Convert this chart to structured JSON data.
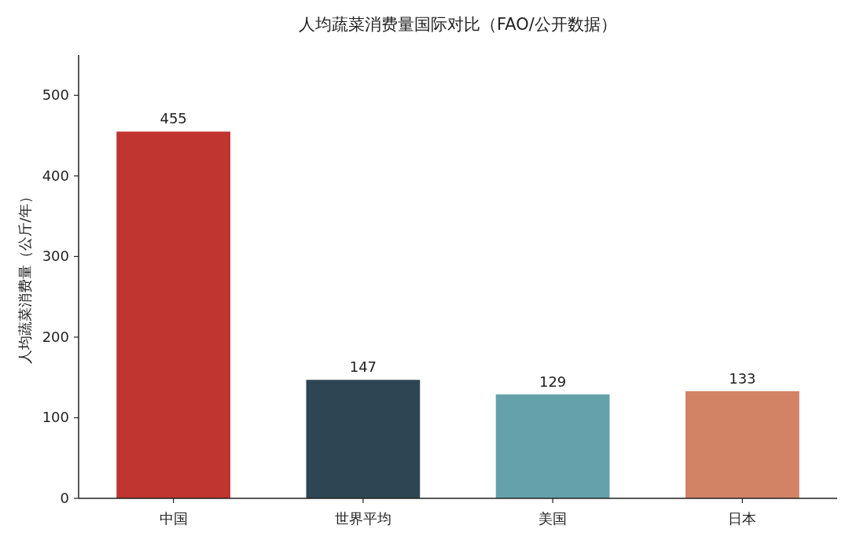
{
  "chart_data": {
    "type": "bar",
    "title": "人均蔬菜消费量国际对比（FAO/公开数据）",
    "ylabel": "人均蔬菜消费量（公斤/年）",
    "categories": [
      "中国",
      "世界平均",
      "美国",
      "日本"
    ],
    "values": [
      455,
      147,
      129,
      133
    ],
    "colors": [
      "#c0352f",
      "#2e4553",
      "#65a1ab",
      "#d28265"
    ],
    "ylim": [
      0,
      550
    ],
    "yticks": [
      0,
      100,
      200,
      300,
      400,
      500
    ],
    "data_labels": true
  }
}
